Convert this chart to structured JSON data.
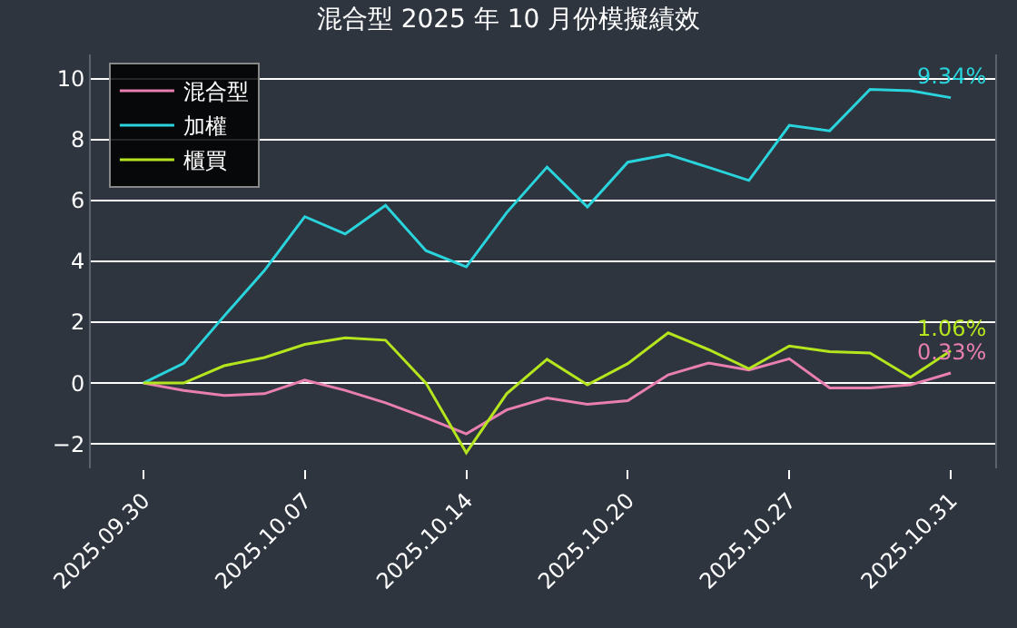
{
  "chart_data": {
    "type": "line",
    "title": "混合型 2025 年 10 月份模擬績效",
    "categories": [
      "2025.09.30",
      null,
      null,
      null,
      "2025.10.07",
      null,
      null,
      null,
      "2025.10.14",
      null,
      null,
      null,
      "2025.10.20",
      null,
      null,
      null,
      "2025.10.27",
      null,
      null,
      null,
      "2025.10.31"
    ],
    "series": [
      {
        "name": "混合型",
        "color": "#e87fb0",
        "values": [
          0,
          -0.24,
          -0.41,
          -0.35,
          0.1,
          -0.24,
          -0.65,
          -1.14,
          -1.67,
          -0.88,
          -0.49,
          -0.7,
          -0.58,
          0.27,
          0.66,
          0.43,
          0.8,
          -0.16,
          -0.16,
          -0.06,
          0.33
        ]
      },
      {
        "name": "加權",
        "color": "#2ad4dc",
        "values": [
          0,
          0.65,
          2.2,
          3.7,
          5.47,
          4.9,
          5.84,
          4.35,
          3.82,
          5.6,
          7.1,
          5.79,
          7.26,
          7.51,
          7.09,
          6.66,
          8.47,
          8.29,
          9.65,
          9.61,
          9.38
        ]
      },
      {
        "name": "櫃買",
        "color": "#b5e61d",
        "values": [
          0,
          0,
          0.57,
          0.84,
          1.27,
          1.49,
          1.41,
          0,
          -2.29,
          -0.35,
          0.78,
          -0.06,
          0.64,
          1.65,
          1.1,
          0.47,
          1.22,
          1.03,
          0.99,
          0.19,
          1.06
        ]
      }
    ],
    "annotations": [
      {
        "text": "9.34%",
        "x": "2025.10.31",
        "y": 9.38
      },
      {
        "text": "1.06%",
        "x": "2025.10.31",
        "y": 1.06
      },
      {
        "text": "0.33%",
        "x": "2025.10.31",
        "y": 0.33
      }
    ],
    "ylim": [
      -2.8,
      10.8
    ],
    "yticks": [
      -2,
      0,
      2,
      4,
      6,
      8,
      10
    ],
    "grid": "y",
    "legend": "top left",
    "marker": "none",
    "line_style": "solid"
  }
}
